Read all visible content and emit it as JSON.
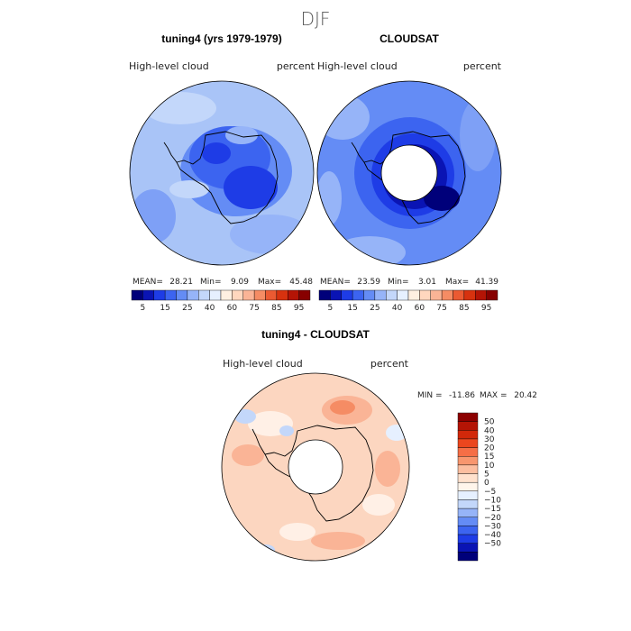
{
  "chart_data": [
    {
      "type": "heatmap",
      "projection": "south-polar-stereographic",
      "title": "tuning4 (yrs 1979-1979)",
      "season": "DJF",
      "variable_label": "High-level cloud",
      "units_label": "percent",
      "mean_label": "MEAN=",
      "mean": 28.21,
      "min_label": "Min=",
      "min": 9.09,
      "max_label": "Max=",
      "max": 45.48,
      "colorbar_ticks": [
        "5",
        "15",
        "25",
        "40",
        "60",
        "75",
        "85",
        "95"
      ],
      "colorbar_colors": [
        "#00007a",
        "#0a14b4",
        "#1e3ce6",
        "#3c64f0",
        "#648cf5",
        "#96b4f8",
        "#c3d7fa",
        "#e6f0ff",
        "#fff0e1",
        "#ffd7be",
        "#fab496",
        "#f58c64",
        "#eb5a32",
        "#d7320f",
        "#b41405",
        "#870000"
      ]
    },
    {
      "type": "heatmap",
      "projection": "south-polar-stereographic",
      "title": "CLOUDSAT",
      "variable_label": "High-level cloud",
      "units_label": "percent",
      "mean_label": "MEAN=",
      "mean": 23.59,
      "min_label": "Min=",
      "min": 3.01,
      "max_label": "Max=",
      "max": 41.39,
      "colorbar_ticks": [
        "5",
        "15",
        "25",
        "40",
        "60",
        "75",
        "85",
        "95"
      ],
      "colorbar_colors": [
        "#00007a",
        "#0a14b4",
        "#1e3ce6",
        "#3c64f0",
        "#648cf5",
        "#96b4f8",
        "#c3d7fa",
        "#e6f0ff",
        "#fff0e1",
        "#ffd7be",
        "#fab496",
        "#f58c64",
        "#eb5a32",
        "#d7320f",
        "#b41405",
        "#870000"
      ]
    },
    {
      "type": "heatmap",
      "projection": "south-polar-stereographic",
      "title": "tuning4 - CLOUDSAT",
      "variable_label": "High-level cloud",
      "units_label": "percent",
      "min_label": "MIN =",
      "min": -11.86,
      "max_label": "MAX =",
      "max": 20.42,
      "colorbar_ticks": [
        "50",
        "40",
        "30",
        "20",
        "15",
        "10",
        "5",
        "0",
        "−5",
        "−10",
        "−15",
        "−20",
        "−30",
        "−40",
        "−50"
      ],
      "colorbar_colors": [
        "#8c0000",
        "#b41405",
        "#d2280a",
        "#eb461e",
        "#f56e46",
        "#f8966e",
        "#fcbea0",
        "#ffe1cd",
        "#fff5eb",
        "#e6f0ff",
        "#c3d7fa",
        "#96b4f8",
        "#648cf5",
        "#3c64f0",
        "#1e3ce6",
        "#0a14b4",
        "#00007a"
      ]
    }
  ]
}
